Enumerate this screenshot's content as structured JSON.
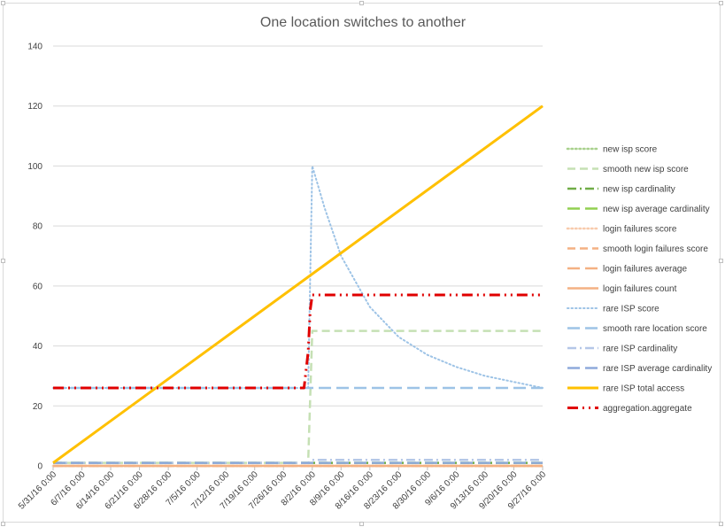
{
  "chart_data": {
    "type": "line",
    "title": "One location switches to another",
    "xlabel": "",
    "ylabel": "",
    "ylim": [
      0,
      140
    ],
    "yticks": [
      0,
      20,
      40,
      60,
      80,
      100,
      120,
      140
    ],
    "xlim": [
      "5/31/16 0:00",
      "9/27/16 0:00"
    ],
    "xticks": [
      "5/31/16 0:00",
      "6/7/16 0:00",
      "6/14/16 0:00",
      "6/21/16 0:00",
      "6/28/16 0:00",
      "7/5/16 0:00",
      "7/12/16 0:00",
      "7/19/16 0:00",
      "7/26/16 0:00",
      "8/2/16 0:00",
      "8/9/16 0:00",
      "8/16/16 0:00",
      "8/23/16 0:00",
      "8/30/16 0:00",
      "9/6/16 0:00",
      "9/13/16 0:00",
      "9/20/16 0:00",
      "9/27/16 0:00"
    ],
    "grid": true,
    "legend_position": "right",
    "series": [
      {
        "name": "new isp score",
        "color": "#a9d18e",
        "dash": "dot",
        "points": [
          [
            "5/31/16 0:00",
            0
          ],
          [
            "9/27/16 0:00",
            0
          ]
        ]
      },
      {
        "name": "smooth new isp score",
        "color": "#c5e0b4",
        "dash": "dash",
        "points": [
          [
            "5/31/16 0:00",
            1
          ],
          [
            "8/1/16 0:00",
            1
          ],
          [
            "8/2/16 0:00",
            45
          ],
          [
            "9/27/16 0:00",
            45
          ]
        ]
      },
      {
        "name": "new isp cardinality",
        "color": "#70ad47",
        "dash": "dashdot",
        "points": [
          [
            "5/31/16 0:00",
            1
          ],
          [
            "9/27/16 0:00",
            1
          ]
        ]
      },
      {
        "name": "new isp average cardinality",
        "color": "#92d050",
        "dash": "longdash",
        "points": [
          [
            "5/31/16 0:00",
            1
          ],
          [
            "9/27/16 0:00",
            1
          ]
        ]
      },
      {
        "name": "login failures score",
        "color": "#f8cbad",
        "dash": "dot",
        "points": [
          [
            "5/31/16 0:00",
            0
          ],
          [
            "9/27/16 0:00",
            0
          ]
        ]
      },
      {
        "name": "smooth login failures score",
        "color": "#f4b183",
        "dash": "dash",
        "points": [
          [
            "5/31/16 0:00",
            0
          ],
          [
            "9/27/16 0:00",
            0
          ]
        ]
      },
      {
        "name": "login failures average",
        "color": "#f4b183",
        "dash": "longdash",
        "points": [
          [
            "5/31/16 0:00",
            0
          ],
          [
            "9/27/16 0:00",
            0
          ]
        ]
      },
      {
        "name": "login failures count",
        "color": "#f4b183",
        "dash": "solid",
        "points": [
          [
            "5/31/16 0:00",
            0
          ],
          [
            "9/27/16 0:00",
            0
          ]
        ]
      },
      {
        "name": "rare ISP score",
        "color": "#9dc3e6",
        "dash": "dot",
        "points": [
          [
            "5/31/16 0:00",
            26
          ],
          [
            "8/1/16 0:00",
            26
          ],
          [
            "8/2/16 0:00",
            100
          ],
          [
            "8/5/16 0:00",
            86
          ],
          [
            "8/9/16 0:00",
            70
          ],
          [
            "8/16/16 0:00",
            53
          ],
          [
            "8/23/16 0:00",
            43
          ],
          [
            "8/30/16 0:00",
            37
          ],
          [
            "9/6/16 0:00",
            33
          ],
          [
            "9/13/16 0:00",
            30
          ],
          [
            "9/20/16 0:00",
            28
          ],
          [
            "9/27/16 0:00",
            26
          ]
        ]
      },
      {
        "name": "smooth rare location score",
        "color": "#9dc3e6",
        "dash": "longdash",
        "points": [
          [
            "5/31/16 0:00",
            26
          ],
          [
            "9/27/16 0:00",
            26
          ]
        ]
      },
      {
        "name": "rare ISP cardinality",
        "color": "#b4c7e7",
        "dash": "dashdot",
        "points": [
          [
            "5/31/16 0:00",
            1
          ],
          [
            "8/1/16 0:00",
            1
          ],
          [
            "8/2/16 0:00",
            2
          ],
          [
            "9/27/16 0:00",
            2
          ]
        ]
      },
      {
        "name": "rare ISP average cardinality",
        "color": "#8faadc",
        "dash": "longdash",
        "points": [
          [
            "5/31/16 0:00",
            1
          ],
          [
            "9/27/16 0:00",
            1
          ]
        ]
      },
      {
        "name": "rare ISP total access",
        "color": "#ffc000",
        "dash": "solid",
        "points": [
          [
            "5/31/16 0:00",
            1
          ],
          [
            "9/27/16 0:00",
            120
          ]
        ]
      },
      {
        "name": "aggregation.aggregate",
        "color": "#e00000",
        "dash": "dashdotdot",
        "points": [
          [
            "5/31/16 0:00",
            26
          ],
          [
            "7/31/16 0:00",
            26
          ],
          [
            "8/1/16 0:00",
            38
          ],
          [
            "8/1/16 12:00",
            52
          ],
          [
            "8/2/16 0:00",
            57
          ],
          [
            "9/27/16 0:00",
            57
          ]
        ]
      }
    ]
  }
}
